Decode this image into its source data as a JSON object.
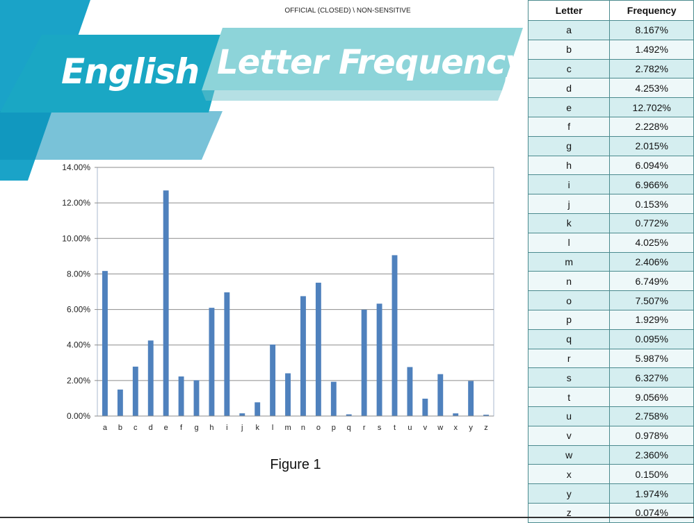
{
  "header": {
    "classification": "OFFICIAL (CLOSED) \\ NON-SENSITIVE"
  },
  "title": {
    "word1": "English",
    "word2": "Letter Frequency"
  },
  "caption": "Figure 1",
  "colors": {
    "bar": "#4f81bd",
    "banner_dark": "#1aa3c8",
    "banner_light": "#7fcfd6",
    "table_border": "#4a8a8e"
  },
  "table": {
    "headers": [
      "Letter",
      "Frequency"
    ],
    "rows": [
      [
        "a",
        "8.167%"
      ],
      [
        "b",
        "1.492%"
      ],
      [
        "c",
        "2.782%"
      ],
      [
        "d",
        "4.253%"
      ],
      [
        "e",
        "12.702%"
      ],
      [
        "f",
        "2.228%"
      ],
      [
        "g",
        "2.015%"
      ],
      [
        "h",
        "6.094%"
      ],
      [
        "i",
        "6.966%"
      ],
      [
        "j",
        "0.153%"
      ],
      [
        "k",
        "0.772%"
      ],
      [
        "l",
        "4.025%"
      ],
      [
        "m",
        "2.406%"
      ],
      [
        "n",
        "6.749%"
      ],
      [
        "o",
        "7.507%"
      ],
      [
        "p",
        "1.929%"
      ],
      [
        "q",
        "0.095%"
      ],
      [
        "r",
        "5.987%"
      ],
      [
        "s",
        "6.327%"
      ],
      [
        "t",
        "9.056%"
      ],
      [
        "u",
        "2.758%"
      ],
      [
        "v",
        "0.978%"
      ],
      [
        "w",
        "2.360%"
      ],
      [
        "x",
        "0.150%"
      ],
      [
        "y",
        "1.974%"
      ],
      [
        "z",
        "0.074%"
      ]
    ]
  },
  "chart_data": {
    "type": "bar",
    "categories": [
      "a",
      "b",
      "c",
      "d",
      "e",
      "f",
      "g",
      "h",
      "i",
      "j",
      "k",
      "l",
      "m",
      "n",
      "o",
      "p",
      "q",
      "r",
      "s",
      "t",
      "u",
      "v",
      "w",
      "x",
      "y",
      "z"
    ],
    "values": [
      8.167,
      1.492,
      2.782,
      4.253,
      12.702,
      2.228,
      2.015,
      6.094,
      6.966,
      0.153,
      0.772,
      4.025,
      2.406,
      6.749,
      7.507,
      1.929,
      0.095,
      5.987,
      6.327,
      9.056,
      2.758,
      0.978,
      2.36,
      0.15,
      1.974,
      0.074
    ],
    "ylim": [
      0,
      14
    ],
    "yticks": [
      "0.00%",
      "2.00%",
      "4.00%",
      "6.00%",
      "8.00%",
      "10.00%",
      "12.00%",
      "14.00%"
    ],
    "grid": true,
    "legend": "none"
  }
}
